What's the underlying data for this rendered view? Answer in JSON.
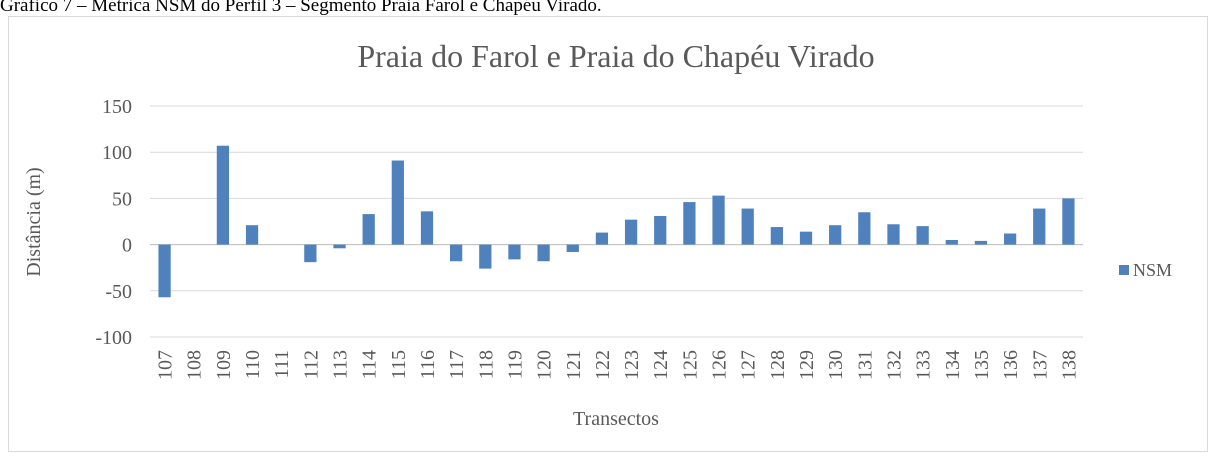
{
  "caption": "Gráfico 7 – Métrica NSM do Perfil 3 – Segmento Praia Farol e Chapéu Virado.",
  "chart_data": {
    "type": "bar",
    "title": "Praia do Farol e Praia do Chapéu Virado",
    "x_label": "Transectos",
    "y_label": "Distância (m)",
    "categories": [
      "107",
      "108",
      "109",
      "110",
      "111",
      "112",
      "113",
      "114",
      "115",
      "116",
      "117",
      "118",
      "119",
      "120",
      "121",
      "122",
      "123",
      "124",
      "125",
      "126",
      "127",
      "128",
      "129",
      "130",
      "131",
      "132",
      "133",
      "134",
      "135",
      "136",
      "137",
      "138"
    ],
    "series": [
      {
        "name": "NSM",
        "color": "#4f81bd",
        "values": [
          -57,
          0,
          107,
          21,
          0,
          -19,
          -4,
          33,
          91,
          36,
          -18,
          -26,
          -16,
          -18,
          -8,
          13,
          27,
          31,
          46,
          53,
          39,
          19,
          14,
          21,
          35,
          22,
          20,
          5,
          4,
          12,
          39,
          50
        ]
      }
    ],
    "ylim": [
      -100,
      150
    ],
    "yticks": [
      -100,
      -50,
      0,
      50,
      100,
      150
    ],
    "grid": true,
    "legend": "right"
  }
}
